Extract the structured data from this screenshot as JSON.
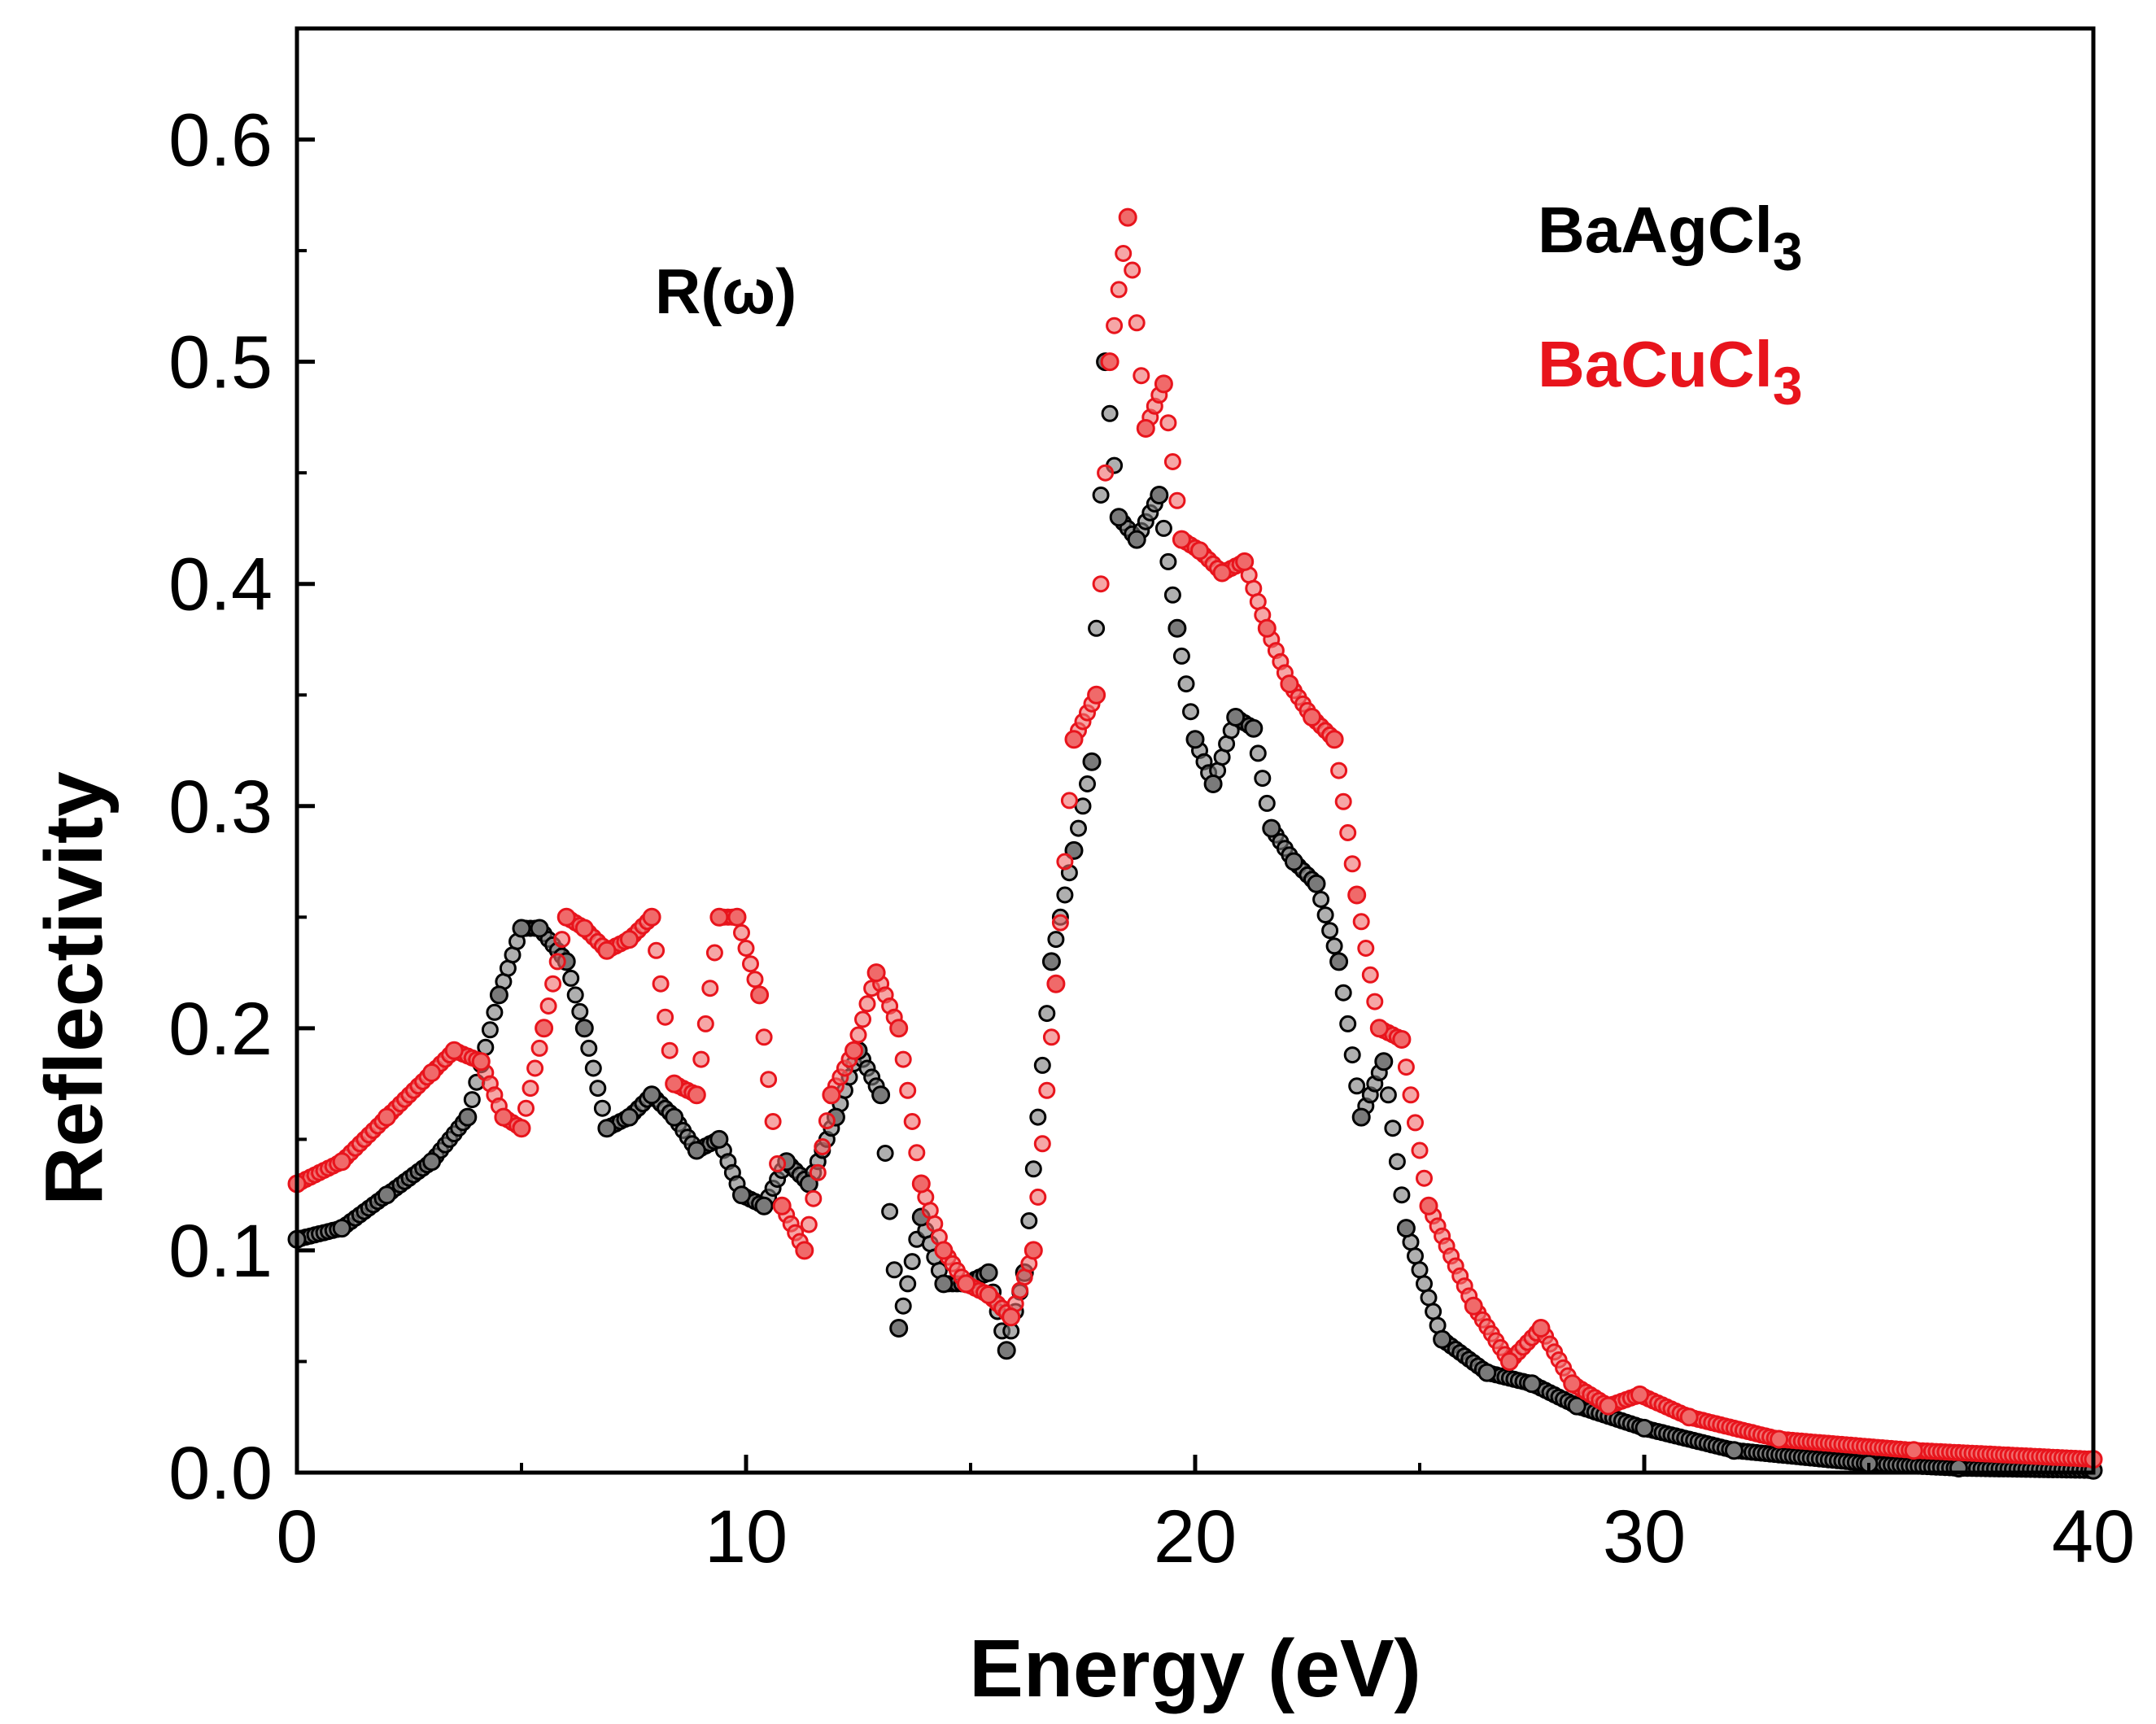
{
  "chart_data": {
    "type": "scatter",
    "title": "",
    "annotation": "R(ω)",
    "xlabel": "Energy (eV)",
    "ylabel": "Reflectivity",
    "xlim": [
      0,
      40
    ],
    "ylim": [
      0,
      0.65
    ],
    "xticks": [
      0,
      10,
      20,
      30,
      40
    ],
    "xtick_labels": [
      "0",
      "10",
      "20",
      "30",
      "40"
    ],
    "yticks": [
      0,
      0.1,
      0.2,
      0.3,
      0.4,
      0.5,
      0.6
    ],
    "ytick_labels": [
      "0.0",
      "0.1",
      "0.2",
      "0.3",
      "0.4",
      "0.5",
      "0.6"
    ],
    "grid": false,
    "legend_position": "top-right",
    "series": [
      {
        "name": "BaAgCl3",
        "legend_base": "BaAgCl",
        "legend_sub": "3",
        "color": "#000000",
        "fill": "#7a7a7a",
        "x": [
          0,
          1,
          2,
          3,
          3.8,
          4.5,
          5,
          5.4,
          6,
          6.4,
          6.9,
          7.4,
          7.9,
          8.4,
          8.9,
          9.4,
          9.9,
          10.4,
          10.9,
          11.4,
          12,
          12.5,
          13,
          13.4,
          13.9,
          14.4,
          14.9,
          15.4,
          15.8,
          16.2,
          16.8,
          17.3,
          17.7,
          18,
          18.3,
          18.7,
          19.2,
          19.6,
          20,
          20.4,
          20.9,
          21.3,
          21.7,
          22.2,
          22.7,
          23.2,
          23.7,
          24.2,
          24.7,
          25.5,
          26.5,
          27.5,
          28.5,
          30,
          32,
          35,
          37,
          40
        ],
        "y": [
          0.105,
          0.11,
          0.125,
          0.14,
          0.16,
          0.215,
          0.245,
          0.245,
          0.23,
          0.2,
          0.155,
          0.16,
          0.17,
          0.16,
          0.145,
          0.15,
          0.125,
          0.12,
          0.14,
          0.13,
          0.16,
          0.19,
          0.17,
          0.065,
          0.115,
          0.085,
          0.085,
          0.09,
          0.055,
          0.09,
          0.23,
          0.28,
          0.32,
          0.5,
          0.43,
          0.42,
          0.44,
          0.38,
          0.33,
          0.31,
          0.34,
          0.335,
          0.29,
          0.275,
          0.265,
          0.23,
          0.16,
          0.185,
          0.11,
          0.06,
          0.045,
          0.04,
          0.03,
          0.02,
          0.01,
          0.004,
          0.002,
          0.001
        ]
      },
      {
        "name": "BaCuCl3",
        "legend_base": "BaCuCl",
        "legend_sub": "3",
        "color": "#e8141c",
        "fill": "#f06a6a",
        "x": [
          0,
          1,
          2,
          3,
          3.5,
          4.1,
          4.6,
          5,
          5.5,
          6,
          6.4,
          6.9,
          7.4,
          7.9,
          8.4,
          8.9,
          9.4,
          9.8,
          10.3,
          10.8,
          11.3,
          11.9,
          12.4,
          12.9,
          13.4,
          13.9,
          14.4,
          14.9,
          15.4,
          15.9,
          16.4,
          16.9,
          17.3,
          17.8,
          18.1,
          18.5,
          18.9,
          19.3,
          19.7,
          20.1,
          20.6,
          21.1,
          21.6,
          22.1,
          22.6,
          23.1,
          23.6,
          24.1,
          24.6,
          25.2,
          26.2,
          27,
          27.7,
          28.4,
          29.2,
          29.9,
          31,
          33,
          36,
          40
        ],
        "y": [
          0.13,
          0.14,
          0.16,
          0.18,
          0.19,
          0.185,
          0.16,
          0.155,
          0.2,
          0.25,
          0.245,
          0.235,
          0.24,
          0.25,
          0.175,
          0.17,
          0.25,
          0.25,
          0.215,
          0.12,
          0.1,
          0.17,
          0.19,
          0.225,
          0.2,
          0.13,
          0.1,
          0.085,
          0.08,
          0.07,
          0.1,
          0.22,
          0.33,
          0.35,
          0.5,
          0.565,
          0.47,
          0.49,
          0.42,
          0.415,
          0.405,
          0.41,
          0.38,
          0.355,
          0.34,
          0.33,
          0.26,
          0.2,
          0.195,
          0.12,
          0.075,
          0.05,
          0.065,
          0.04,
          0.03,
          0.035,
          0.025,
          0.015,
          0.01,
          0.006
        ]
      }
    ]
  }
}
